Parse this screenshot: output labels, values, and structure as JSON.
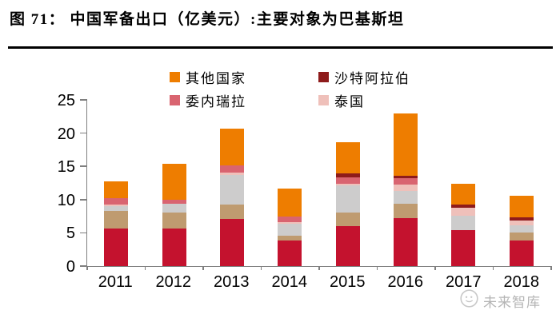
{
  "page": {
    "title": "图 71： 中国军备出口（亿美元）:主要对象为巴基斯坦",
    "watermark": "未来智库"
  },
  "chart_data": {
    "type": "bar",
    "stacked": true,
    "title": "中国军备出口（亿美元）:主要对象为巴基斯坦",
    "xlabel": "",
    "ylabel": "",
    "ylim": [
      0,
      25
    ],
    "yticks": [
      0,
      5,
      10,
      15,
      20,
      25
    ],
    "grid": false,
    "legend_position": "top",
    "legend": [
      {
        "label": "其他国家",
        "color": "#EE7D00"
      },
      {
        "label": "沙特阿拉伯",
        "color": "#8E1B1B"
      },
      {
        "label": "委内瑞拉",
        "color": "#D96470"
      },
      {
        "label": "泰国",
        "color": "#EFC0BA"
      }
    ],
    "categories": [
      "2011",
      "2012",
      "2013",
      "2014",
      "2015",
      "2016",
      "2017",
      "2018"
    ],
    "series": [
      {
        "name": "",
        "color": "#C4122E",
        "values": [
          5.6,
          5.6,
          7.1,
          3.9,
          6.0,
          7.2,
          5.4,
          3.9
        ]
      },
      {
        "name": "",
        "color": "#BF9B70",
        "values": [
          2.7,
          2.5,
          2.1,
          0.7,
          2.1,
          2.2,
          0.0,
          1.1
        ]
      },
      {
        "name": "",
        "color": "#CDCCCC",
        "values": [
          0.7,
          1.3,
          4.5,
          1.8,
          4.0,
          1.9,
          2.2,
          1.1
        ]
      },
      {
        "name": "泰国",
        "color": "#EFC0BA",
        "values": [
          0.3,
          0.0,
          0.4,
          0.2,
          0.3,
          1.0,
          1.2,
          0.7
        ]
      },
      {
        "name": "委内瑞拉",
        "color": "#D96470",
        "values": [
          0.9,
          0.6,
          1.1,
          0.8,
          1.0,
          0.9,
          0.0,
          0.0
        ]
      },
      {
        "name": "沙特阿拉伯",
        "color": "#8E1B1B",
        "values": [
          0.0,
          0.0,
          0.0,
          0.0,
          0.5,
          0.4,
          0.5,
          0.5
        ]
      },
      {
        "name": "其他国家",
        "color": "#EE7D00",
        "values": [
          2.5,
          5.4,
          5.5,
          4.3,
          4.7,
          9.4,
          3.1,
          3.3
        ]
      }
    ]
  }
}
